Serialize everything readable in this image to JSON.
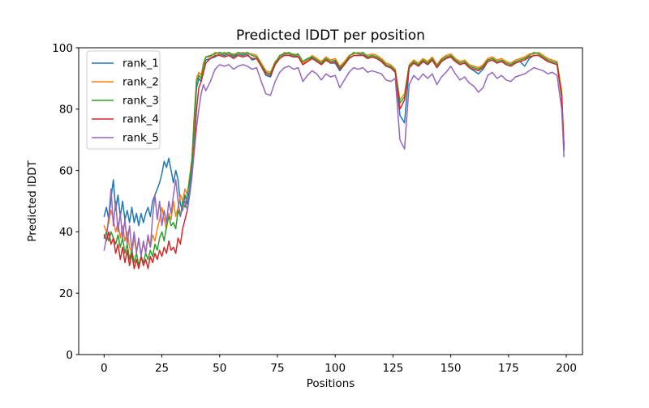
{
  "figure": {
    "title": "Predicted lDDT per position",
    "xlabel": "Positions",
    "ylabel": "Predicted lDDT",
    "background_color": "#ffffff",
    "spine_color": "#000000",
    "legend_border_color": "#cccccc"
  },
  "legend": {
    "position": "upper left",
    "entries": [
      "rank_1",
      "rank_2",
      "rank_3",
      "rank_4",
      "rank_5"
    ]
  },
  "chart_data": {
    "type": "line",
    "title": "Predicted lDDT per position",
    "xlabel": "Positions",
    "ylabel": "Predicted lDDT",
    "xlim": [
      -11,
      207
    ],
    "ylim": [
      0,
      100
    ],
    "xticks": [
      0,
      25,
      50,
      75,
      100,
      125,
      150,
      175,
      200
    ],
    "yticks": [
      0,
      20,
      40,
      60,
      80,
      100
    ],
    "grid": false,
    "legend_position": "upper left",
    "x": [
      0,
      1,
      2,
      3,
      4,
      5,
      6,
      7,
      8,
      9,
      10,
      11,
      12,
      13,
      14,
      15,
      16,
      17,
      18,
      19,
      20,
      21,
      22,
      23,
      24,
      25,
      26,
      27,
      28,
      29,
      30,
      31,
      32,
      33,
      34,
      35,
      36,
      37,
      38,
      39,
      40,
      41,
      42,
      43,
      44,
      46,
      48,
      50,
      52,
      54,
      56,
      58,
      60,
      62,
      64,
      66,
      68,
      70,
      72,
      74,
      76,
      78,
      80,
      82,
      84,
      86,
      88,
      90,
      92,
      94,
      96,
      98,
      100,
      102,
      104,
      106,
      108,
      110,
      112,
      114,
      116,
      118,
      120,
      122,
      124,
      126,
      128,
      130,
      132,
      134,
      136,
      138,
      140,
      142,
      144,
      146,
      148,
      150,
      152,
      154,
      156,
      158,
      160,
      162,
      164,
      166,
      168,
      170,
      172,
      174,
      176,
      178,
      180,
      182,
      184,
      186,
      188,
      190,
      192,
      194,
      196,
      198,
      199
    ],
    "series": [
      {
        "name": "rank_1",
        "color": "#1f77b4",
        "values": [
          45,
          48,
          44,
          51,
          57,
          47,
          52,
          45,
          50,
          44,
          47,
          43,
          48,
          43,
          46,
          42,
          46,
          43,
          46,
          48,
          45,
          50,
          52,
          54,
          56,
          59,
          63,
          61,
          64,
          60,
          56,
          60,
          57,
          49,
          47,
          52,
          49,
          54,
          62,
          75,
          87,
          90,
          89,
          94,
          96,
          96.5,
          97,
          98,
          97.5,
          98,
          97,
          98,
          97.5,
          98,
          96,
          96.5,
          94,
          91,
          90.5,
          94.5,
          97,
          98,
          98,
          97,
          97.5,
          94.5,
          95.5,
          97,
          96,
          94.5,
          96,
          95,
          95,
          92.5,
          94.5,
          96.5,
          97.5,
          97.5,
          98,
          96.5,
          97,
          96.5,
          95.5,
          94,
          93.5,
          92,
          78,
          75.5,
          93.5,
          95,
          94,
          95.5,
          94.5,
          96,
          93.5,
          95.5,
          96.5,
          97,
          95.5,
          94.5,
          95,
          93.5,
          92.5,
          91.5,
          93,
          95.5,
          96,
          95,
          95.5,
          94.5,
          94,
          95,
          95.5,
          94,
          96.5,
          97.5,
          97.5,
          96.5,
          95.5,
          95,
          94.5,
          84,
          66.5
        ]
      },
      {
        "name": "rank_2",
        "color": "#ff7f0e",
        "values": [
          42,
          40,
          43,
          47,
          44,
          40,
          43,
          38,
          42,
          37,
          40,
          35,
          33,
          38,
          34,
          37,
          33,
          36,
          34,
          38,
          35,
          39,
          37,
          41,
          44,
          48,
          44,
          41,
          46,
          44,
          50,
          45,
          48,
          52,
          50,
          54,
          52,
          58,
          64,
          78,
          90,
          92,
          91,
          95,
          97,
          97,
          98.5,
          98,
          98.5,
          98,
          98,
          98,
          98.5,
          98,
          98,
          97.5,
          95,
          92.5,
          92,
          95.5,
          97,
          98.5,
          98,
          98,
          97.5,
          95,
          96,
          97.5,
          96.5,
          95.5,
          97,
          96,
          96.5,
          94,
          95.5,
          97.5,
          98,
          98.5,
          98,
          97.5,
          98,
          97.5,
          96.5,
          95,
          94.5,
          93,
          83,
          85,
          94.5,
          96,
          95,
          96.5,
          95.5,
          97,
          94.5,
          96.5,
          97.5,
          98,
          96.5,
          95.5,
          96,
          94.5,
          94,
          93.5,
          94.5,
          96.5,
          97,
          96,
          96.5,
          95.5,
          95,
          96,
          96.5,
          97,
          98,
          98,
          98.5,
          97.5,
          96.5,
          96,
          95.5,
          86,
          67.5
        ]
      },
      {
        "name": "rank_3",
        "color": "#2ca02c",
        "values": [
          38,
          40,
          37,
          40,
          38,
          36,
          39,
          35,
          38,
          33,
          36,
          31,
          34,
          30,
          33,
          29,
          32,
          30,
          33,
          31,
          34,
          32,
          36,
          34,
          38,
          40,
          37,
          42,
          45,
          42,
          43,
          41,
          47,
          45,
          50,
          48,
          52,
          57,
          63,
          76,
          89,
          91,
          90,
          94,
          97,
          97.5,
          98,
          98.5,
          98,
          98.5,
          97.5,
          98.5,
          98,
          98.5,
          97.5,
          97,
          94.5,
          92,
          91.5,
          95,
          97.5,
          98,
          98.5,
          97.5,
          98,
          95.5,
          96.5,
          97,
          96,
          95,
          96.5,
          95.5,
          96,
          93.5,
          95,
          97,
          98.5,
          98,
          98.5,
          97,
          97.5,
          97,
          96,
          94.5,
          94,
          92.5,
          82,
          84,
          94,
          95.5,
          94.5,
          96,
          95,
          96.5,
          94,
          96,
          97,
          97.5,
          96,
          95,
          95.5,
          94,
          93.5,
          93,
          94,
          96,
          96.5,
          95.5,
          96,
          95,
          94.5,
          95.5,
          96,
          96.5,
          97.5,
          98.5,
          98,
          97,
          96,
          95.5,
          95,
          85,
          67
        ]
      },
      {
        "name": "rank_4",
        "color": "#d62728",
        "values": [
          39,
          37,
          40,
          36,
          38,
          33,
          36,
          31,
          35,
          30,
          34,
          29,
          33,
          28,
          31,
          28,
          32,
          29,
          31,
          28,
          32,
          30,
          33,
          31,
          34,
          32,
          35,
          33,
          37,
          34,
          35,
          33,
          38,
          36,
          41,
          44,
          47,
          52,
          58,
          68,
          80,
          87,
          89,
          92,
          95,
          96.5,
          97.5,
          97.5,
          97,
          97.5,
          96.5,
          97.5,
          97,
          97.5,
          96.5,
          96.5,
          94,
          91.5,
          91,
          94.5,
          96.5,
          97.5,
          97.5,
          97,
          97,
          94.5,
          95.5,
          96.5,
          95.5,
          94.5,
          96,
          95,
          95.5,
          93,
          94.5,
          96.5,
          97.5,
          97.5,
          97.5,
          96.5,
          97,
          96.5,
          95.5,
          94,
          93.5,
          92,
          80,
          83,
          93.5,
          95,
          94,
          95.5,
          94.5,
          96,
          93.5,
          95.5,
          96.5,
          97,
          95.5,
          94.5,
          95,
          93.5,
          93,
          92.5,
          93.5,
          95.5,
          96,
          95,
          95.5,
          94.5,
          94,
          95,
          95.5,
          96,
          97,
          97.5,
          97.5,
          96.5,
          95.5,
          95,
          94.5,
          84,
          68
        ]
      },
      {
        "name": "rank_5",
        "color": "#9467bd",
        "values": [
          34,
          38,
          45,
          54,
          42,
          50,
          40,
          46,
          38,
          44,
          36,
          42,
          34,
          40,
          33,
          38,
          32,
          37,
          33,
          39,
          35,
          45,
          52,
          44,
          50,
          42,
          47,
          43,
          50,
          46,
          52,
          57,
          50,
          45,
          48,
          50,
          47,
          52,
          58,
          66,
          74,
          80,
          85,
          88,
          86,
          89,
          93,
          94.5,
          94,
          94.5,
          93,
          94,
          94.5,
          94,
          93,
          93.5,
          89,
          85,
          84.5,
          89,
          92,
          93.5,
          94,
          93,
          93.5,
          89,
          91,
          92.5,
          91.5,
          89.5,
          91.5,
          90.5,
          91,
          87,
          89.5,
          92,
          93.5,
          93,
          93.5,
          92,
          92.5,
          92,
          91.5,
          89.5,
          89,
          90,
          70,
          67,
          88,
          91,
          89.5,
          91.5,
          90,
          91.5,
          88,
          90.5,
          92,
          94,
          91.5,
          89.5,
          90.5,
          88.5,
          87.5,
          85.5,
          87,
          91,
          92,
          90,
          91,
          89.5,
          89,
          90.5,
          91,
          91.5,
          92.5,
          93.5,
          93,
          92.5,
          91.5,
          92,
          91,
          80,
          64.5
        ]
      }
    ]
  }
}
